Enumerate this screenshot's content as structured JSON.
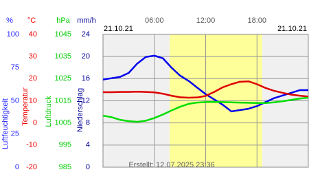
{
  "chart_data": {
    "type": "line",
    "date_start": "21.10.21",
    "date_end": "21.10.21",
    "footer": "Erstellt: 12.07.2025 23:36",
    "xlim": [
      0,
      24
    ],
    "xticks": [
      {
        "value": 6,
        "label": "06:00"
      },
      {
        "value": 12,
        "label": "12:00"
      },
      {
        "value": 18,
        "label": "18:00"
      }
    ],
    "daylight": [
      7.8,
      18.6
    ],
    "daylight_color": "#ffff99",
    "background": "#f0f0f0",
    "grid": true,
    "axes": [
      {
        "unit": "%",
        "title": "Luftfeuchtigkeit",
        "color": "#2222ff",
        "ylim": [
          0,
          100
        ],
        "yticks": [
          0,
          25,
          50,
          75,
          100
        ]
      },
      {
        "unit": "°C",
        "title": "Temperatur",
        "color": "#ee0000",
        "ylim": [
          -20,
          40
        ],
        "yticks": [
          -20,
          -10,
          0,
          10,
          20,
          30,
          40
        ]
      },
      {
        "unit": "hPa",
        "title": "Luftdruck",
        "color": "#00cc00",
        "ylim": [
          985,
          1045
        ],
        "yticks": [
          985,
          995,
          1005,
          1015,
          1025,
          1035,
          1045
        ]
      },
      {
        "unit": "mm/h",
        "title": "Niederschlag",
        "color": "#000099",
        "ylim": [
          0,
          24
        ],
        "yticks": [
          0,
          4,
          8,
          12,
          16,
          20,
          24
        ]
      }
    ],
    "x": [
      0,
      1,
      2,
      3,
      4,
      5,
      6,
      7,
      8,
      9,
      10,
      11,
      12,
      13,
      14,
      15,
      16,
      17,
      18,
      19,
      20,
      21,
      22,
      23,
      24
    ],
    "series": [
      {
        "name": "Luftfeuchtigkeit",
        "axis": 0,
        "color": "#0000ee",
        "values": [
          66,
          67,
          68,
          71,
          78,
          83,
          84,
          82,
          75,
          69,
          65,
          60,
          55,
          51,
          47,
          42,
          43,
          44,
          46,
          49,
          52,
          54,
          56,
          58,
          58
        ]
      },
      {
        "name": "Temperatur",
        "axis": 1,
        "color": "#dd0000",
        "values": [
          13.9,
          13.9,
          14.0,
          14.0,
          14.1,
          14.0,
          13.8,
          13.2,
          12.3,
          11.6,
          11.4,
          11.5,
          12.2,
          14.0,
          16.1,
          17.5,
          18.6,
          18.8,
          17.5,
          15.8,
          14.5,
          13.6,
          12.8,
          12.3,
          11.9
        ]
      },
      {
        "name": "Luftdruck",
        "axis": 2,
        "color": "#00dd00",
        "values": [
          1008.3,
          1007.6,
          1006.4,
          1005.8,
          1005.5,
          1006.0,
          1007.2,
          1008.8,
          1010.6,
          1012.3,
          1013.6,
          1014.2,
          1014.4,
          1014.5,
          1014.4,
          1014.3,
          1014.2,
          1014.1,
          1014.0,
          1014.0,
          1014.3,
          1014.8,
          1015.4,
          1016.0,
          1016.4
        ]
      }
    ]
  }
}
